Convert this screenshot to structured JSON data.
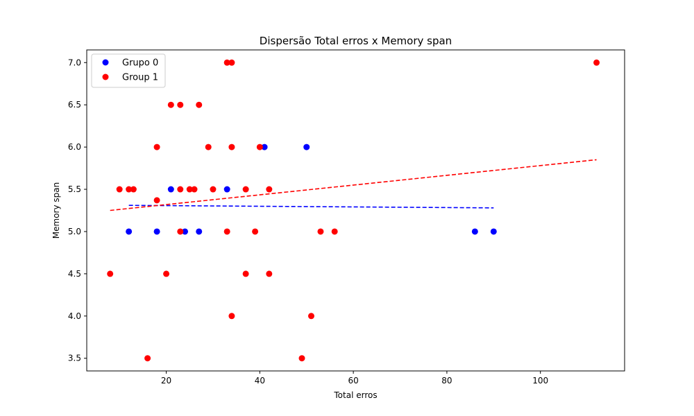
{
  "chart_data": {
    "type": "scatter",
    "title": "Dispersão Total erros x Memory span",
    "xlabel": "Total erros",
    "ylabel": "Memory span",
    "xlim": [
      3,
      118
    ],
    "ylim": [
      3.35,
      7.15
    ],
    "xticks": [
      20,
      40,
      60,
      80,
      100
    ],
    "xtick_labels": [
      "20",
      "40",
      "60",
      "80",
      "100"
    ],
    "yticks": [
      3.5,
      4.0,
      4.5,
      5.0,
      5.5,
      6.0,
      6.5,
      7.0
    ],
    "ytick_labels": [
      "3.5",
      "4.0",
      "4.5",
      "5.0",
      "5.5",
      "6.0",
      "6.5",
      "7.0"
    ],
    "grid": false,
    "legend_position": "top-left",
    "series": [
      {
        "name": "Grupo 0",
        "color": "#0000ff",
        "points": [
          [
            12,
            5.0
          ],
          [
            18,
            5.0
          ],
          [
            21,
            5.5
          ],
          [
            24,
            5.0
          ],
          [
            27,
            5.0
          ],
          [
            33,
            5.5
          ],
          [
            41,
            6.0
          ],
          [
            50,
            6.0
          ],
          [
            86,
            5.0
          ],
          [
            90,
            5.0
          ]
        ],
        "trend": {
          "x": [
            12,
            90
          ],
          "y": [
            5.31,
            5.28
          ]
        }
      },
      {
        "name": "Group 1",
        "color": "#ff0000",
        "points": [
          [
            8,
            4.5
          ],
          [
            10,
            5.5
          ],
          [
            12,
            5.5
          ],
          [
            13,
            5.5
          ],
          [
            16,
            3.5
          ],
          [
            18,
            6.0
          ],
          [
            18,
            5.37
          ],
          [
            20,
            4.5
          ],
          [
            21,
            6.5
          ],
          [
            23,
            6.5
          ],
          [
            23,
            5.5
          ],
          [
            23,
            5.0
          ],
          [
            25,
            5.5
          ],
          [
            26,
            5.5
          ],
          [
            27,
            6.5
          ],
          [
            29,
            6.0
          ],
          [
            30,
            5.5
          ],
          [
            33,
            7.0
          ],
          [
            33,
            5.0
          ],
          [
            34,
            7.0
          ],
          [
            34,
            6.0
          ],
          [
            34,
            4.0
          ],
          [
            37,
            5.5
          ],
          [
            37,
            4.5
          ],
          [
            39,
            5.0
          ],
          [
            40,
            6.0
          ],
          [
            42,
            5.5
          ],
          [
            42,
            4.5
          ],
          [
            49,
            3.5
          ],
          [
            51,
            4.0
          ],
          [
            53,
            5.0
          ],
          [
            56,
            5.0
          ],
          [
            112,
            7.0
          ]
        ],
        "trend": {
          "x": [
            8,
            112
          ],
          "y": [
            5.25,
            5.85
          ]
        }
      }
    ]
  }
}
